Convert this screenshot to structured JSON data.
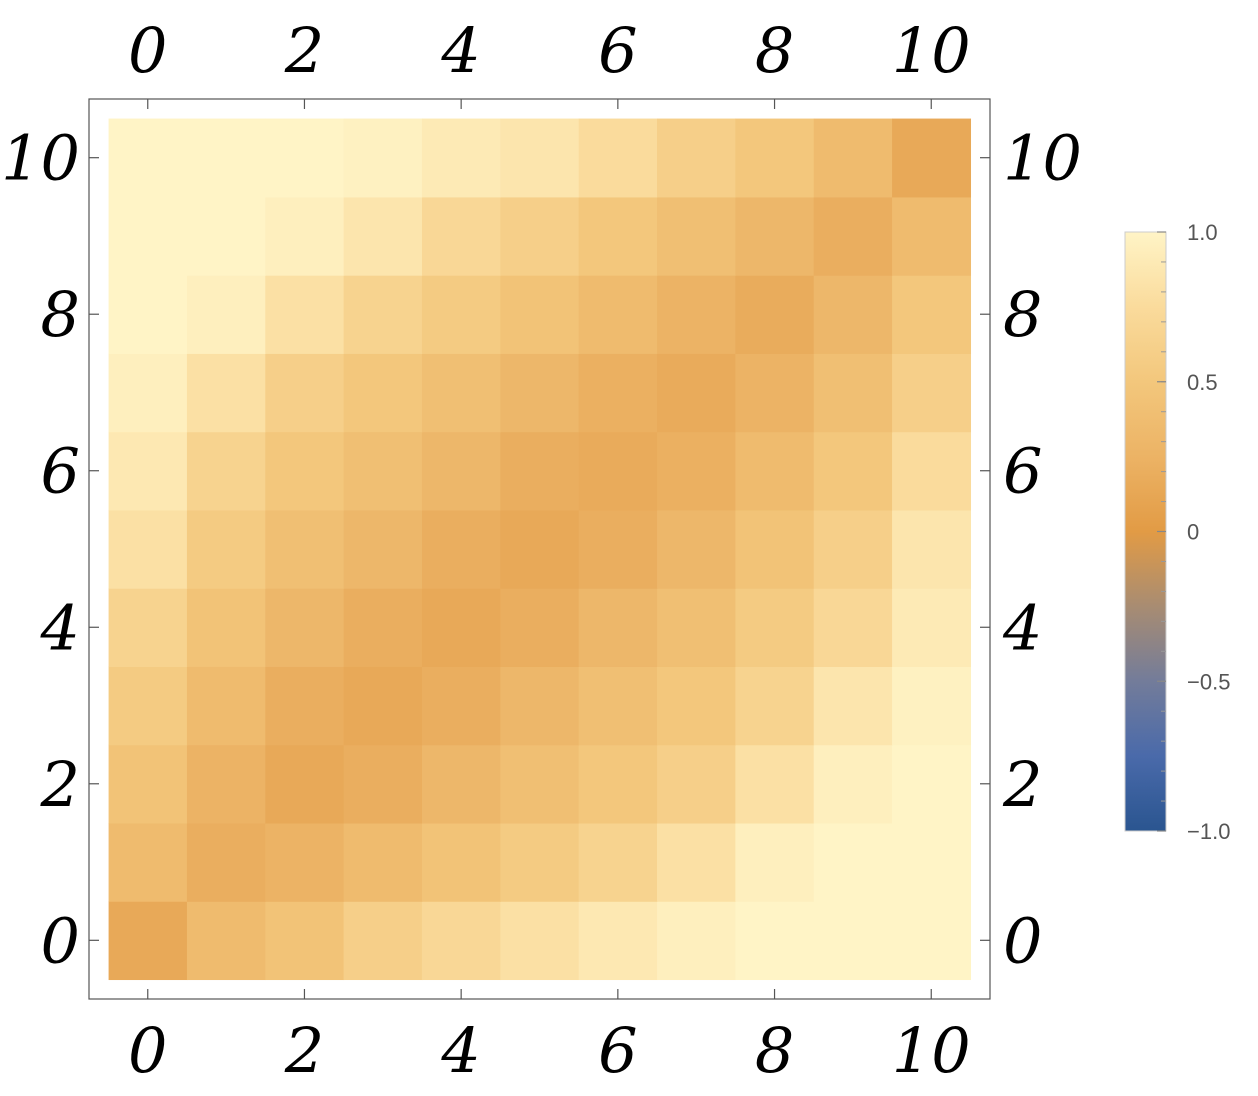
{
  "chart_data": {
    "type": "heatmap",
    "title": "",
    "xlabel": "",
    "ylabel": "",
    "x_ticks": [
      "0",
      "2",
      "4",
      "6",
      "8",
      "10"
    ],
    "y_ticks": [
      "0",
      "2",
      "4",
      "6",
      "8",
      "10"
    ],
    "x": [
      0,
      1,
      2,
      3,
      4,
      5,
      6,
      7,
      8,
      9,
      10
    ],
    "y": [
      0,
      1,
      2,
      3,
      4,
      5,
      6,
      7,
      8,
      9,
      10
    ],
    "xlim": [
      -0.75,
      10.75
    ],
    "ylim": [
      -0.75,
      10.75
    ],
    "values": [
      [
        0.15,
        0.35,
        0.45,
        0.6,
        0.7,
        0.8,
        0.88,
        0.95,
        1.0,
        1.0,
        1.0
      ],
      [
        0.35,
        0.2,
        0.25,
        0.35,
        0.45,
        0.55,
        0.65,
        0.8,
        0.95,
        1.0,
        1.0
      ],
      [
        0.45,
        0.25,
        0.15,
        0.2,
        0.3,
        0.4,
        0.5,
        0.6,
        0.8,
        0.95,
        1.0
      ],
      [
        0.55,
        0.35,
        0.2,
        0.15,
        0.2,
        0.3,
        0.4,
        0.5,
        0.65,
        0.85,
        0.97
      ],
      [
        0.65,
        0.45,
        0.3,
        0.2,
        0.15,
        0.2,
        0.3,
        0.4,
        0.55,
        0.7,
        0.9
      ],
      [
        0.8,
        0.55,
        0.4,
        0.3,
        0.2,
        0.15,
        0.2,
        0.3,
        0.45,
        0.6,
        0.85
      ],
      [
        0.88,
        0.65,
        0.5,
        0.4,
        0.3,
        0.2,
        0.17,
        0.22,
        0.35,
        0.5,
        0.75
      ],
      [
        0.95,
        0.8,
        0.6,
        0.5,
        0.4,
        0.3,
        0.22,
        0.17,
        0.25,
        0.4,
        0.6
      ],
      [
        1.0,
        0.95,
        0.8,
        0.65,
        0.55,
        0.45,
        0.35,
        0.25,
        0.18,
        0.3,
        0.5
      ],
      [
        1.0,
        1.0,
        0.95,
        0.85,
        0.7,
        0.6,
        0.5,
        0.4,
        0.3,
        0.2,
        0.35
      ],
      [
        1.0,
        1.0,
        1.0,
        0.97,
        0.9,
        0.85,
        0.75,
        0.6,
        0.5,
        0.35,
        0.15
      ]
    ],
    "colorbar": {
      "range": [
        -1,
        1
      ],
      "tick_values": [
        1,
        0.5,
        0,
        -0.5,
        -1
      ],
      "tick_labels": [
        "1.0",
        "0.5",
        "0",
        "−0.5",
        "−1.0"
      ],
      "color_stops": [
        {
          "value": -1.0,
          "color": "#2a5590"
        },
        {
          "value": -0.75,
          "color": "#4a6aaa"
        },
        {
          "value": -0.5,
          "color": "#737c9a"
        },
        {
          "value": -0.25,
          "color": "#a88c72"
        },
        {
          "value": 0.0,
          "color": "#e29b45"
        },
        {
          "value": 0.25,
          "color": "#ecb365"
        },
        {
          "value": 0.5,
          "color": "#f3c77c"
        },
        {
          "value": 0.75,
          "color": "#fadb9c"
        },
        {
          "value": 1.0,
          "color": "#fff4c6"
        }
      ]
    },
    "grid": false,
    "legend": "colorbar-right"
  }
}
